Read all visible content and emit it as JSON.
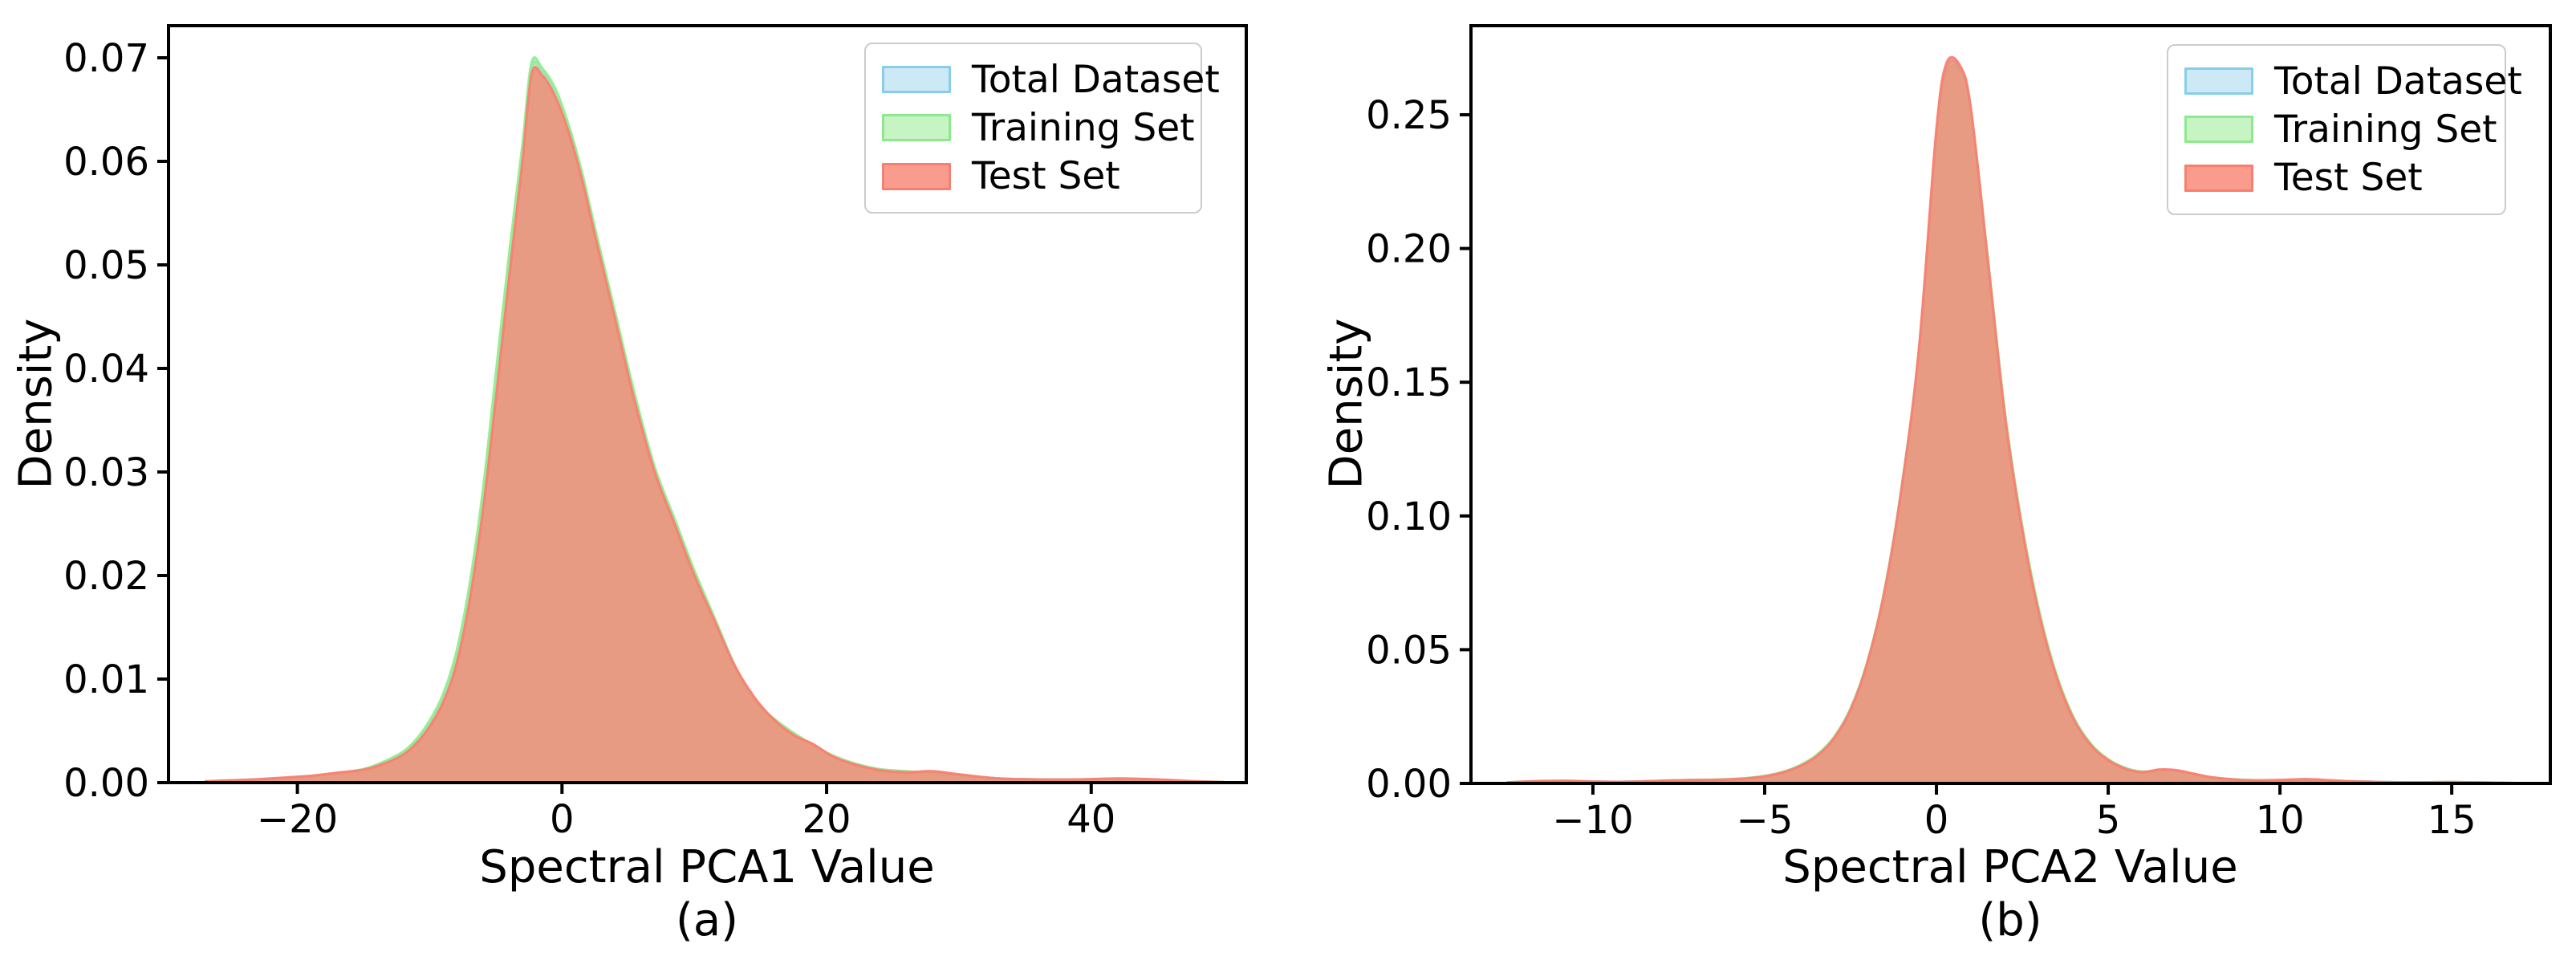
{
  "figure": {
    "background": "#ffffff",
    "spine_color": "#000000"
  },
  "chart_data": [
    {
      "type": "area",
      "panel_label": "(a)",
      "xlabel": "Spectral PCA1 Value",
      "ylabel": "Density",
      "xlim": [
        -29.74,
        51.72
      ],
      "ylim": [
        0,
        0.0731
      ],
      "xticks": [
        -20,
        0,
        20,
        40
      ],
      "yticks": [
        0,
        0.01,
        0.02,
        0.03,
        0.04,
        0.05,
        0.06,
        0.07
      ],
      "y_tick_decimals": 2,
      "legend_position": "upper right",
      "grid": false,
      "x": [
        -27,
        -25,
        -23,
        -21,
        -19,
        -17,
        -15,
        -13.5,
        -12,
        -11,
        -10,
        -9,
        -8,
        -7,
        -6,
        -5,
        -4,
        -3,
        -2.3,
        -1.5,
        -0.5,
        0.5,
        1.5,
        2.5,
        4,
        5.5,
        7,
        8.5,
        10,
        11.5,
        13,
        14.5,
        16,
        17.5,
        19,
        20.5,
        22,
        24,
        26,
        28,
        30,
        33,
        36,
        39,
        42,
        45,
        48,
        50
      ],
      "series": [
        {
          "name": "Total Dataset",
          "edge_color": "#87CEEB",
          "fill_color": "#B9DFF0",
          "fill_opacity": 0.6,
          "legend_fill": "#CDE9F6",
          "legend_edge": "#88CEE8",
          "values": [
            0.0001,
            0.0002,
            0.0003,
            0.00043,
            0.0006,
            0.0009,
            0.00128,
            0.0019,
            0.0029,
            0.004,
            0.0057,
            0.0081,
            0.0119,
            0.0182,
            0.027,
            0.0382,
            0.0498,
            0.0606,
            0.069,
            0.0687,
            0.0666,
            0.0632,
            0.0586,
            0.0531,
            0.0451,
            0.0371,
            0.0302,
            0.0252,
            0.0202,
            0.0158,
            0.0114,
            0.0081,
            0.0061,
            0.0047,
            0.0036,
            0.0025,
            0.0018,
            0.0012,
            0.001,
            0.001,
            0.00075,
            0.0004,
            0.0003,
            0.00029,
            0.00036,
            0.00026,
            0.00013,
            5e-05
          ]
        },
        {
          "name": "Training Set",
          "edge_color": "#90EE90",
          "fill_color": "#A5EDA0",
          "fill_opacity": 0.7,
          "legend_fill": "#C6F4C2",
          "legend_edge": "#8FE88F",
          "values": [
            0.0001,
            0.0002,
            0.0003,
            0.00045,
            0.0006,
            0.0009,
            0.0013,
            0.002,
            0.003,
            0.0042,
            0.006,
            0.0085,
            0.0125,
            0.019,
            0.028,
            0.0395,
            0.051,
            0.0615,
            0.0695,
            0.069,
            0.067,
            0.0635,
            0.059,
            0.0535,
            0.0455,
            0.0375,
            0.0305,
            0.0255,
            0.0205,
            0.016,
            0.0115,
            0.008,
            0.0062,
            0.0048,
            0.0036,
            0.0026,
            0.0019,
            0.0013,
            0.0011,
            0.0009,
            0.0007,
            0.0004,
            0.0003,
            0.00028,
            0.00033,
            0.00022,
            0.00012,
            5e-05
          ]
        },
        {
          "name": "Test Set",
          "edge_color": "#FA8072",
          "fill_color": "#FA8072",
          "fill_opacity": 0.75,
          "legend_fill": "#F99C8D",
          "legend_edge": "#F87F70",
          "values": [
            0.00012,
            0.00022,
            0.00032,
            0.00048,
            0.00065,
            0.00095,
            0.00125,
            0.0018,
            0.0027,
            0.0038,
            0.0054,
            0.0077,
            0.0113,
            0.0174,
            0.026,
            0.037,
            0.0487,
            0.0598,
            0.0684,
            0.0683,
            0.0662,
            0.0628,
            0.0583,
            0.0528,
            0.0448,
            0.0368,
            0.03,
            0.025,
            0.02,
            0.0157,
            0.0114,
            0.0083,
            0.0061,
            0.0046,
            0.0037,
            0.0025,
            0.0018,
            0.0012,
            0.001,
            0.0011,
            0.0008,
            0.0004,
            0.0003,
            0.0003,
            0.0004,
            0.0003,
            0.00012,
            5e-05
          ]
        }
      ]
    },
    {
      "type": "area",
      "panel_label": "(b)",
      "xlabel": "Spectral PCA2 Value",
      "ylabel": "Density",
      "xlim": [
        -13.55,
        17.87
      ],
      "ylim": [
        0,
        0.2833
      ],
      "xticks": [
        -10,
        -5,
        0,
        5,
        10,
        15
      ],
      "yticks": [
        0,
        0.05,
        0.1,
        0.15,
        0.2,
        0.25
      ],
      "y_tick_decimals": 2,
      "legend_position": "upper right",
      "grid": false,
      "x": [
        -12.5,
        -11.5,
        -10.8,
        -10,
        -9,
        -8,
        -7.2,
        -6.5,
        -6,
        -5.5,
        -5,
        -4.5,
        -4,
        -3.5,
        -3,
        -2.5,
        -2,
        -1.5,
        -1,
        -0.5,
        0,
        0.3,
        0.7,
        1,
        1.5,
        2,
        2.5,
        3,
        3.5,
        4,
        4.5,
        5,
        5.5,
        6,
        6.5,
        7,
        7.5,
        8,
        9,
        10,
        10.8,
        11.4,
        12,
        13,
        14,
        15,
        16,
        17
      ],
      "series": [
        {
          "name": "Total Dataset",
          "edge_color": "#87CEEB",
          "fill_color": "#B9DFF0",
          "fill_opacity": 0.6,
          "legend_fill": "#CDE9F6",
          "legend_edge": "#88CEE8",
          "values": [
            0.00035,
            0.0008,
            0.0009,
            0.00065,
            0.0006,
            0.00095,
            0.00125,
            0.00135,
            0.00155,
            0.00195,
            0.0027,
            0.0041,
            0.0064,
            0.0102,
            0.0167,
            0.0277,
            0.0457,
            0.0727,
            0.1117,
            0.1632,
            0.243,
            0.268,
            0.267,
            0.252,
            0.1955,
            0.1372,
            0.0952,
            0.0632,
            0.04,
            0.0241,
            0.0144,
            0.0088,
            0.0056,
            0.0043,
            0.005,
            0.0047,
            0.0035,
            0.00225,
            0.00125,
            0.0012,
            0.0014,
            0.00115,
            0.0008,
            0.0005,
            0.0004,
            0.00047,
            0.0003,
            0.0001
          ]
        },
        {
          "name": "Training Set",
          "edge_color": "#90EE90",
          "fill_color": "#A5EDA0",
          "fill_opacity": 0.7,
          "legend_fill": "#C6F4C2",
          "legend_edge": "#8FE88F",
          "values": [
            0.0003,
            0.0007,
            0.0008,
            0.0006,
            0.0006,
            0.0009,
            0.0013,
            0.0014,
            0.0016,
            0.002,
            0.0028,
            0.0042,
            0.0066,
            0.0105,
            0.017,
            0.028,
            0.046,
            0.073,
            0.112,
            0.163,
            0.242,
            0.2655,
            0.2665,
            0.252,
            0.196,
            0.138,
            0.096,
            0.064,
            0.0405,
            0.0245,
            0.0147,
            0.009,
            0.0058,
            0.0044,
            0.0049,
            0.0046,
            0.0034,
            0.0022,
            0.0013,
            0.0011,
            0.0012,
            0.0011,
            0.0008,
            0.0005,
            0.0004,
            0.00045,
            0.0003,
            0.0001
          ]
        },
        {
          "name": "Test Set",
          "edge_color": "#FA8072",
          "fill_color": "#FA8072",
          "fill_opacity": 0.75,
          "legend_fill": "#F99C8D",
          "legend_edge": "#F87F70",
          "values": [
            0.0004,
            0.0009,
            0.001,
            0.0007,
            0.0006,
            0.001,
            0.0012,
            0.0013,
            0.0015,
            0.0019,
            0.0026,
            0.004,
            0.0063,
            0.01,
            0.0165,
            0.0275,
            0.0455,
            0.0725,
            0.1115,
            0.1635,
            0.2445,
            0.2695,
            0.268,
            0.2525,
            0.195,
            0.1365,
            0.0945,
            0.0625,
            0.0395,
            0.0238,
            0.0142,
            0.0087,
            0.0055,
            0.0042,
            0.0052,
            0.0049,
            0.0036,
            0.0023,
            0.0012,
            0.0013,
            0.0016,
            0.0012,
            0.0008,
            0.0005,
            0.0004,
            0.0005,
            0.0003,
            0.0001
          ]
        }
      ]
    }
  ]
}
